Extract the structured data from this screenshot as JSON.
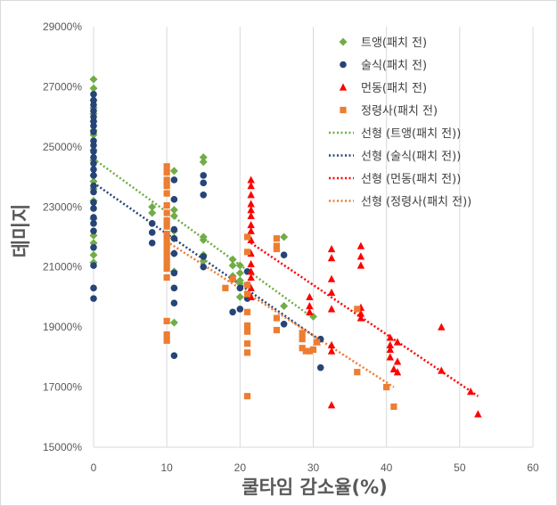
{
  "chart_data": {
    "type": "scatter",
    "xlabel": "쿨타임 감소율(%)",
    "ylabel": "데미지",
    "xlim": [
      0,
      60
    ],
    "ylim": [
      15000,
      29000
    ],
    "x_ticks": [
      "0",
      "10",
      "20",
      "30",
      "40",
      "50",
      "60"
    ],
    "y_ticks": [
      "15000%",
      "17000%",
      "19000%",
      "21000%",
      "23000%",
      "25000%",
      "27000%",
      "29000%"
    ],
    "grid": "vertical",
    "legend_position": "top-right",
    "series": [
      {
        "name": "트앵(패치 전)",
        "color": "#70AD47",
        "marker": "diamond",
        "points": [
          [
            0,
            27250
          ],
          [
            0,
            26950
          ],
          [
            0,
            26550
          ],
          [
            0,
            26300
          ],
          [
            0,
            26100
          ],
          [
            0,
            25850
          ],
          [
            0,
            25550
          ],
          [
            0,
            25400
          ],
          [
            0,
            24900
          ],
          [
            0,
            24550
          ],
          [
            0,
            24050
          ],
          [
            0,
            23850
          ],
          [
            0,
            23600
          ],
          [
            0,
            23200
          ],
          [
            0,
            22600
          ],
          [
            0,
            22050
          ],
          [
            0,
            21800
          ],
          [
            0,
            21400
          ],
          [
            0,
            21150
          ],
          [
            8,
            23000
          ],
          [
            8,
            22800
          ],
          [
            11,
            24200
          ],
          [
            11,
            22900
          ],
          [
            11,
            22700
          ],
          [
            11,
            22200
          ],
          [
            11,
            21950
          ],
          [
            11,
            21450
          ],
          [
            11,
            20850
          ],
          [
            11,
            19150
          ],
          [
            15,
            24650
          ],
          [
            15,
            24500
          ],
          [
            15,
            22000
          ],
          [
            15,
            21900
          ],
          [
            15,
            21400
          ],
          [
            15,
            21200
          ],
          [
            19,
            21250
          ],
          [
            19,
            21050
          ],
          [
            19,
            20700
          ],
          [
            20,
            21050
          ],
          [
            20,
            20800
          ],
          [
            20,
            20550
          ],
          [
            20,
            20450
          ],
          [
            20,
            20000
          ],
          [
            26,
            22000
          ],
          [
            26,
            19700
          ],
          [
            30,
            19350
          ]
        ]
      },
      {
        "name": "술식(패치 전)",
        "color": "#264478",
        "marker": "circle",
        "points": [
          [
            0,
            26750
          ],
          [
            0,
            26550
          ],
          [
            0,
            26400
          ],
          [
            0,
            26200
          ],
          [
            0,
            26000
          ],
          [
            0,
            25850
          ],
          [
            0,
            25700
          ],
          [
            0,
            25500
          ],
          [
            0,
            25200
          ],
          [
            0,
            25050
          ],
          [
            0,
            24850
          ],
          [
            0,
            24650
          ],
          [
            0,
            24450
          ],
          [
            0,
            24250
          ],
          [
            0,
            24050
          ],
          [
            0,
            23700
          ],
          [
            0,
            23500
          ],
          [
            0,
            23150
          ],
          [
            0,
            22950
          ],
          [
            0,
            22650
          ],
          [
            0,
            22450
          ],
          [
            0,
            22200
          ],
          [
            0,
            21650
          ],
          [
            0,
            21050
          ],
          [
            0,
            20300
          ],
          [
            0,
            19950
          ],
          [
            8,
            22450
          ],
          [
            8,
            22150
          ],
          [
            8,
            21800
          ],
          [
            11,
            23900
          ],
          [
            11,
            23250
          ],
          [
            11,
            22250
          ],
          [
            11,
            21950
          ],
          [
            11,
            21450
          ],
          [
            11,
            20800
          ],
          [
            11,
            20300
          ],
          [
            11,
            19800
          ],
          [
            11,
            18050
          ],
          [
            15,
            24050
          ],
          [
            15,
            23800
          ],
          [
            15,
            23400
          ],
          [
            15,
            21350
          ],
          [
            15,
            21000
          ],
          [
            19,
            20600
          ],
          [
            19,
            19500
          ],
          [
            20,
            20300
          ],
          [
            20,
            19600
          ],
          [
            21,
            20850
          ],
          [
            21,
            20400
          ],
          [
            21,
            19950
          ],
          [
            26,
            21400
          ],
          [
            26,
            19100
          ],
          [
            31,
            18600
          ],
          [
            31,
            17650
          ]
        ]
      },
      {
        "name": "먼동(패치 전)",
        "color": "#FF0000",
        "marker": "triangle",
        "points": [
          [
            21.5,
            23900
          ],
          [
            21.5,
            23700
          ],
          [
            21.5,
            23400
          ],
          [
            21.5,
            23100
          ],
          [
            21.5,
            22900
          ],
          [
            21.5,
            22700
          ],
          [
            21.5,
            22400
          ],
          [
            21.5,
            22200
          ],
          [
            21.5,
            21900
          ],
          [
            21.5,
            21450
          ],
          [
            21.5,
            21100
          ],
          [
            21.5,
            20850
          ],
          [
            21.5,
            20650
          ],
          [
            21.5,
            20300
          ],
          [
            21.5,
            20000
          ],
          [
            29.5,
            20000
          ],
          [
            29.5,
            19700
          ],
          [
            29.5,
            19500
          ],
          [
            30.5,
            18500
          ],
          [
            32.5,
            21600
          ],
          [
            32.5,
            21300
          ],
          [
            32.5,
            20600
          ],
          [
            32.5,
            20150
          ],
          [
            32.5,
            19600
          ],
          [
            32.5,
            18400
          ],
          [
            32.5,
            18200
          ],
          [
            32.5,
            16400
          ],
          [
            36.5,
            21700
          ],
          [
            36.5,
            21350
          ],
          [
            36.5,
            21050
          ],
          [
            36.5,
            19650
          ],
          [
            36.5,
            19450
          ],
          [
            36.5,
            19300
          ],
          [
            40.5,
            18650
          ],
          [
            40.5,
            18400
          ],
          [
            40.5,
            18250
          ],
          [
            40.5,
            18000
          ],
          [
            41,
            17600
          ],
          [
            41.5,
            18500
          ],
          [
            41.5,
            17850
          ],
          [
            41.5,
            17500
          ],
          [
            47.5,
            19000
          ],
          [
            47.5,
            17550
          ],
          [
            51.5,
            16850
          ],
          [
            52.5,
            16100
          ]
        ]
      },
      {
        "name": "정령사(패치 전)",
        "color": "#ED7D31",
        "marker": "square",
        "points": [
          [
            10,
            24350
          ],
          [
            10,
            24150
          ],
          [
            10,
            23900
          ],
          [
            10,
            23700
          ],
          [
            10,
            23450
          ],
          [
            10,
            23050
          ],
          [
            10,
            22800
          ],
          [
            10,
            22550
          ],
          [
            10,
            22350
          ],
          [
            10,
            22100
          ],
          [
            10,
            21950
          ],
          [
            10,
            21750
          ],
          [
            10,
            21550
          ],
          [
            10,
            21350
          ],
          [
            10,
            21150
          ],
          [
            10,
            20950
          ],
          [
            10,
            20650
          ],
          [
            10,
            19200
          ],
          [
            10,
            18750
          ],
          [
            10,
            18550
          ],
          [
            18,
            20300
          ],
          [
            19,
            20600
          ],
          [
            21,
            22000
          ],
          [
            21,
            21500
          ],
          [
            21,
            20400
          ],
          [
            21,
            20100
          ],
          [
            21,
            19500
          ],
          [
            21,
            19050
          ],
          [
            21,
            18850
          ],
          [
            21,
            18450
          ],
          [
            21,
            18150
          ],
          [
            21,
            16700
          ],
          [
            25,
            21950
          ],
          [
            25,
            21700
          ],
          [
            25,
            21600
          ],
          [
            25,
            19300
          ],
          [
            25,
            18900
          ],
          [
            28.5,
            18800
          ],
          [
            28.5,
            18600
          ],
          [
            28.5,
            18300
          ],
          [
            29,
            18200
          ],
          [
            29.5,
            18200
          ],
          [
            30,
            18250
          ],
          [
            30.5,
            18500
          ],
          [
            36,
            19600
          ],
          [
            36,
            17500
          ],
          [
            40,
            17000
          ],
          [
            41,
            16350
          ]
        ]
      }
    ],
    "trendlines": [
      {
        "name": "선형 (트앵(패치 전))",
        "series": "트앵(패치 전)",
        "color": "#70AD47",
        "x": [
          0,
          30
        ],
        "y": [
          24600,
          19300
        ]
      },
      {
        "name": "선형 (술식(패치 전))",
        "series": "술식(패치 전)",
        "color": "#264478",
        "x": [
          0,
          31
        ],
        "y": [
          23800,
          18550
        ]
      },
      {
        "name": "선형 (먼동(패치 전))",
        "series": "먼동(패치 전)",
        "color": "#FF0000",
        "x": [
          21.5,
          52.5
        ],
        "y": [
          21800,
          16700
        ]
      },
      {
        "name": "선형 (정령사(패치 전))",
        "series": "정령사(패치 전)",
        "color": "#ED7D31",
        "x": [
          10,
          41
        ],
        "y": [
          21850,
          17000
        ]
      }
    ]
  }
}
